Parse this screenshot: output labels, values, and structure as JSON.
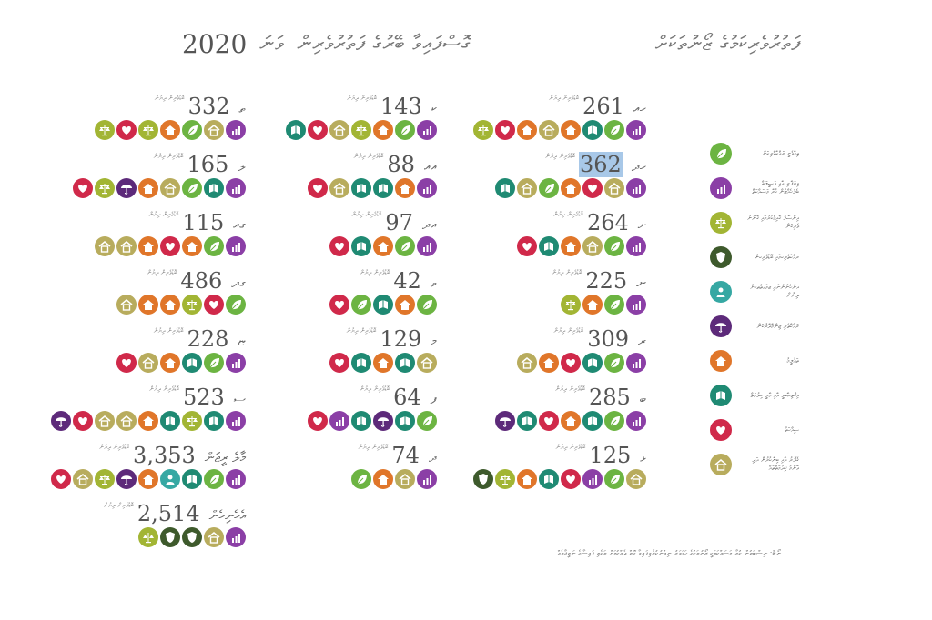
{
  "title": {
    "thaana_right": "ފަތުރުވެރިކަމުގެ ޒޯނުތަކަށް",
    "thaana_left": "ގޮސްފައިވާ ބޭރުގެ ފަތުރުވެރިން",
    "year": "2020",
    "thaana_year_suffix": "ވަނަ"
  },
  "unit_label": "ބޮޑުވެރިން ދިޔުން",
  "colors": {
    "leaf": "#6cb442",
    "chart": "#8b3fa6",
    "scale": "#a2b534",
    "shield": "#3e5a2c",
    "person": "#36a8a3",
    "umbrella": "#5d2a7a",
    "house": "#e0762a",
    "book": "#1f8a73",
    "heart": "#d0294a",
    "home": "#b8ac5d"
  },
  "chart_data": {
    "type": "table",
    "year": "2020",
    "entries": [
      {
        "label": "ހއ",
        "value": "261",
        "icons": [
          "chart",
          "leaf",
          "book",
          "house",
          "home",
          "house",
          "heart",
          "scale"
        ]
      },
      {
        "label": "ހދ",
        "value": "362",
        "icons": [
          "chart",
          "home",
          "heart",
          "house",
          "leaf",
          "home",
          "book"
        ],
        "highlight": true
      },
      {
        "label": "ށ",
        "value": "264",
        "icons": [
          "chart",
          "leaf",
          "home",
          "house",
          "book",
          "heart"
        ]
      },
      {
        "label": "ނ",
        "value": "225",
        "icons": [
          "chart",
          "leaf",
          "house",
          "scale"
        ]
      },
      {
        "label": "ރ",
        "value": "309",
        "icons": [
          "chart",
          "leaf",
          "book",
          "heart",
          "house",
          "home"
        ]
      },
      {
        "label": "ބ",
        "value": "285",
        "icons": [
          "chart",
          "leaf",
          "book",
          "house",
          "heart",
          "book",
          "umbrella"
        ]
      },
      {
        "label": "ޅ",
        "value": "125",
        "icons": [
          "home",
          "leaf",
          "chart",
          "heart",
          "book",
          "house",
          "scale",
          "shield"
        ]
      },
      {
        "label": "ކ",
        "value": "143",
        "icons": [
          "chart",
          "leaf",
          "house",
          "scale",
          "home",
          "heart",
          "book"
        ]
      },
      {
        "label": "އއ",
        "value": "88",
        "icons": [
          "chart",
          "house",
          "book",
          "book",
          "home",
          "heart"
        ]
      },
      {
        "label": "އދ",
        "value": "97",
        "icons": [
          "chart",
          "leaf",
          "house",
          "book",
          "heart"
        ]
      },
      {
        "label": "ވ",
        "value": "42",
        "icons": [
          "leaf",
          "house",
          "book",
          "leaf",
          "heart"
        ]
      },
      {
        "label": "މ",
        "value": "129",
        "icons": [
          "home",
          "book",
          "house",
          "book",
          "heart"
        ]
      },
      {
        "label": "ފ",
        "value": "64",
        "icons": [
          "leaf",
          "book",
          "umbrella",
          "book",
          "chart",
          "heart"
        ]
      },
      {
        "label": "ދ",
        "value": "74",
        "icons": [
          "chart",
          "home",
          "house",
          "leaf"
        ]
      },
      {
        "label": "ތ",
        "value": "332",
        "icons": [
          "chart",
          "home",
          "leaf",
          "house",
          "scale",
          "heart",
          "scale"
        ]
      },
      {
        "label": "ލ",
        "value": "165",
        "icons": [
          "chart",
          "book",
          "leaf",
          "home",
          "house",
          "umbrella",
          "scale",
          "heart"
        ]
      },
      {
        "label": "ގއ",
        "value": "115",
        "icons": [
          "chart",
          "leaf",
          "house",
          "heart",
          "house",
          "home",
          "home"
        ]
      },
      {
        "label": "ގދ",
        "value": "486",
        "icons": [
          "leaf",
          "heart",
          "scale",
          "house",
          "house",
          "home"
        ]
      },
      {
        "label": "ޏ",
        "value": "228",
        "icons": [
          "chart",
          "leaf",
          "book",
          "house",
          "home",
          "heart"
        ]
      },
      {
        "label": "ސ",
        "value": "523",
        "icons": [
          "chart",
          "book",
          "scale",
          "book",
          "house",
          "home",
          "home",
          "heart",
          "umbrella"
        ]
      },
      {
        "label": "މާލެ ރީޖަން",
        "value": "3,353",
        "icons": [
          "chart",
          "leaf",
          "book",
          "person",
          "house",
          "umbrella",
          "scale",
          "home",
          "heart"
        ]
      },
      {
        "label": "އެހެނިހެން",
        "value": "2,514",
        "icons": [
          "chart",
          "home",
          "shield",
          "shield",
          "scale"
        ]
      }
    ]
  },
  "legend": [
    {
      "icon": "leaf",
      "text": "ތިމާވެށީ ރައްކާތެރިކަން"
    },
    {
      "icon": "chart",
      "text": "ވިޔަފާރި އާއި ވަސީލަތް ބެލެހެއްޓުން ކުރާ މަސައްކަތް"
    },
    {
      "icon": "scale",
      "text": "އިންސާފު ޤާއިމްކުރުމާއި ޤާނޫނު ވެރިކަން"
    },
    {
      "icon": "shield",
      "text": "ރައްކާތެރިކަމާއި ބޮޑުވެރިކަން"
    },
    {
      "icon": "person",
      "text": "އަންހެނުންނާއި ޖަމާޢަތްތަކަށް ދިނުން"
    },
    {
      "icon": "umbrella",
      "text": "ރައްކާތެރި ޒިންމާދާރުކަން"
    },
    {
      "icon": "house",
      "text": "ތަޢުލީމު"
    },
    {
      "icon": "book",
      "text": "އިޤްތިޞާދީ އާއި މާލީ ހިދުމަތް"
    },
    {
      "icon": "heart",
      "text": "ސިއްހަތު"
    },
    {
      "icon": "home",
      "text": "ގެދޮރު އާއި ބިނާކުރުން އަދި ޢާންމު ޚިދުމަތްތައް"
    }
  ],
  "footnote": "ނޯޓް: ނިސްބަތުން ކުރާ މަސައްކަތަކީ ޒޯނުތަކުގެ ހަމަވަރު ނިއުނުކުރެވިފައިވާ ގޮތް ދެއްކުމަށް ތަކެތި ފައިސާގެ ނަތީޖާއެއް"
}
